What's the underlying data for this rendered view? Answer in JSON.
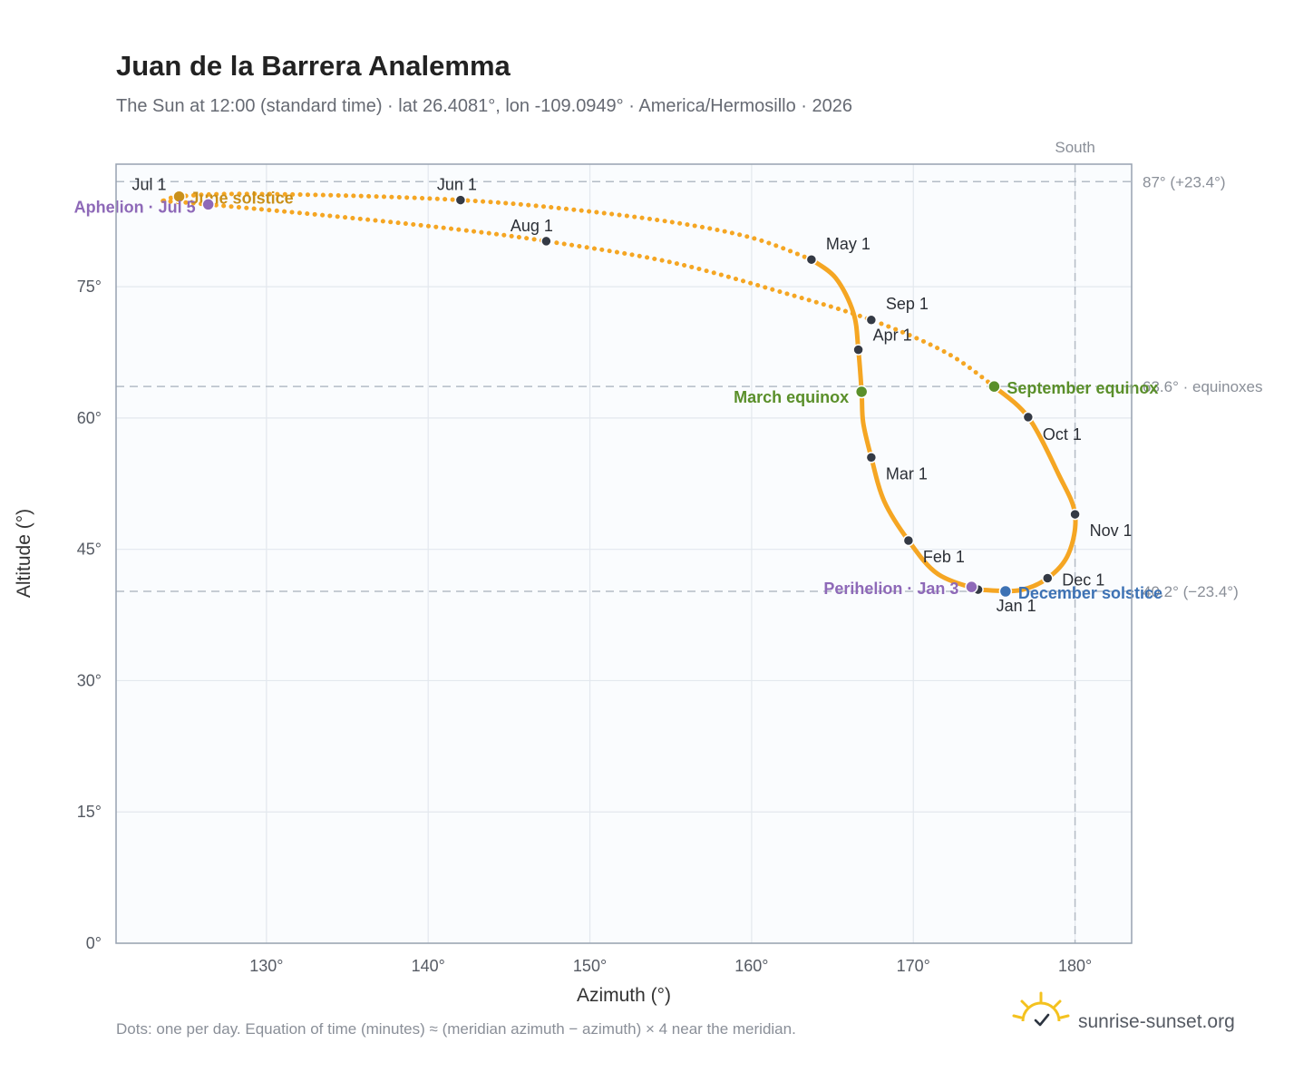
{
  "header": {
    "title": "Juan de la Barrera Analemma",
    "subtitle": "The Sun at 12:00 (standard time) · lat 26.4081°, lon -109.0949° · America/Hermosillo · 2026"
  },
  "footer": {
    "note": "Dots: one per day. Equation of time (minutes) ≈ (meridian azimuth − azimuth) × 4 near the meridian.",
    "brand": "sunrise-sunset.org",
    "brand_icon": "sun-logo-icon"
  },
  "colors": {
    "curve": "#f5a623",
    "month_dot": "#343a45",
    "solstice_june": "#c9901a",
    "equinox": "#5a8f2a",
    "december": "#3d72b4",
    "apsis": "#8e69b8",
    "plot_bg": "#fafcfe",
    "grid": "#e3e8ee",
    "frame": "#97a2b0"
  },
  "chart_data": {
    "type": "scatter",
    "xlabel": "Azimuth (°)",
    "ylabel": "Altitude (°)",
    "xlim": [
      120.7,
      183.5
    ],
    "ylim": [
      0,
      89
    ],
    "x_ticks": [
      130,
      140,
      150,
      160,
      170,
      180
    ],
    "y_ticks": [
      0,
      15,
      30,
      45,
      60,
      75
    ],
    "x_tick_labels": [
      "130°",
      "140°",
      "150°",
      "160°",
      "170°",
      "180°"
    ],
    "y_tick_labels": [
      "0°",
      "15°",
      "30°",
      "45°",
      "60°",
      "75°"
    ],
    "grid": true,
    "reference_lines": {
      "horizontal": [
        {
          "y": 87.0,
          "label": "87° (+23.4°)"
        },
        {
          "y": 63.6,
          "label": "63.6° · equinoxes"
        },
        {
          "y": 40.2,
          "label": "40.2° (−23.4°)"
        }
      ],
      "vertical": [
        {
          "x": 180,
          "label": "South"
        }
      ]
    },
    "month_markers": [
      {
        "label": "Jan 1",
        "az": 174.0,
        "alt": 40.4
      },
      {
        "label": "Feb 1",
        "az": 169.7,
        "alt": 46.0
      },
      {
        "label": "Mar 1",
        "az": 167.4,
        "alt": 55.5
      },
      {
        "label": "Apr 1",
        "az": 166.6,
        "alt": 67.8
      },
      {
        "label": "May 1",
        "az": 163.7,
        "alt": 78.1
      },
      {
        "label": "Jun 1",
        "az": 142.0,
        "alt": 84.9
      },
      {
        "label": "Jul 1",
        "az": 124.6,
        "alt": 85.2
      },
      {
        "label": "Aug 1",
        "az": 147.3,
        "alt": 80.2
      },
      {
        "label": "Sep 1",
        "az": 167.4,
        "alt": 71.2
      },
      {
        "label": "Oct 1",
        "az": 177.1,
        "alt": 60.1
      },
      {
        "label": "Nov 1",
        "az": 180.0,
        "alt": 49.0
      },
      {
        "label": "Dec 1",
        "az": 178.3,
        "alt": 41.7
      }
    ],
    "events": [
      {
        "label": "June solstice",
        "az": 124.6,
        "alt": 85.3,
        "kind": "solstice_june"
      },
      {
        "label": "Aphelion · Jul 5",
        "az": 126.4,
        "alt": 84.4,
        "kind": "apsis"
      },
      {
        "label": "March equinox",
        "az": 166.8,
        "alt": 63.0,
        "kind": "equinox"
      },
      {
        "label": "September equinox",
        "az": 175.0,
        "alt": 63.6,
        "kind": "equinox"
      },
      {
        "label": "Perihelion · Jan 3",
        "az": 173.6,
        "alt": 40.7,
        "kind": "apsis"
      },
      {
        "label": "December solstice",
        "az": 175.7,
        "alt": 40.2,
        "kind": "december"
      }
    ],
    "path_segments": [
      {
        "name": "winter-spring",
        "style": "solid",
        "points": [
          [
            174.0,
            40.4
          ],
          [
            176.5,
            40.3
          ],
          [
            178.3,
            41.7
          ],
          [
            179.6,
            44.5
          ],
          [
            180.0,
            49.0
          ],
          [
            179.0,
            53.5
          ],
          [
            177.1,
            60.1
          ],
          [
            175.0,
            63.6
          ]
        ]
      },
      {
        "name": "january-april",
        "style": "solid",
        "points": [
          [
            174.0,
            40.4
          ],
          [
            171.5,
            42.2
          ],
          [
            169.7,
            46.0
          ],
          [
            168.2,
            50.5
          ],
          [
            167.4,
            55.5
          ],
          [
            166.9,
            59.5
          ],
          [
            166.8,
            63.0
          ],
          [
            166.6,
            67.8
          ],
          [
            166.3,
            72.0
          ],
          [
            165.2,
            76.0
          ],
          [
            163.7,
            78.1
          ]
        ]
      },
      {
        "name": "may-june",
        "style": "dotted",
        "points": [
          [
            163.7,
            78.1
          ],
          [
            160.0,
            80.6
          ],
          [
            155.0,
            82.4
          ],
          [
            148.0,
            84.0
          ],
          [
            142.0,
            84.9
          ],
          [
            135.0,
            85.4
          ],
          [
            128.0,
            85.6
          ],
          [
            124.6,
            85.3
          ],
          [
            123.6,
            84.8
          ]
        ]
      },
      {
        "name": "july-september",
        "style": "dotted",
        "points": [
          [
            123.6,
            84.8
          ],
          [
            126.4,
            84.4
          ],
          [
            135.0,
            82.9
          ],
          [
            142.0,
            81.5
          ],
          [
            147.3,
            80.2
          ],
          [
            155.0,
            77.8
          ],
          [
            162.0,
            74.3
          ],
          [
            167.4,
            71.2
          ],
          [
            172.0,
            67.5
          ],
          [
            175.0,
            63.6
          ]
        ]
      }
    ]
  }
}
